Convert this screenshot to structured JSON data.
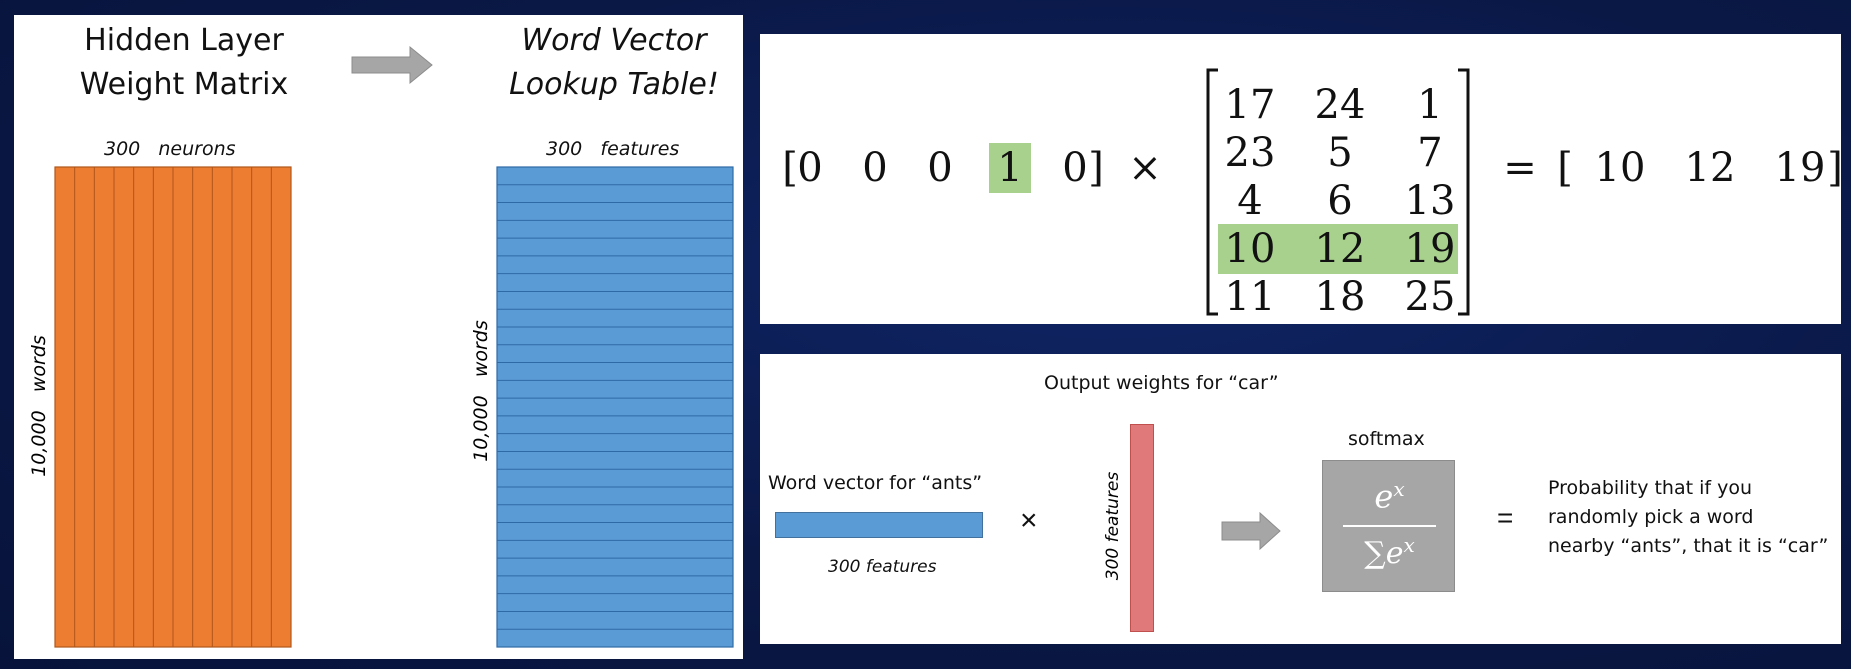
{
  "left_panel": {
    "title_left": [
      "Hidden Layer",
      "Weight Matrix"
    ],
    "title_right": [
      "Word Vector",
      "Lookup Table!"
    ],
    "orange_matrix": {
      "top_label": "300   neurons",
      "side_label": "10,000   words",
      "color": "#ed7d31"
    },
    "blue_matrix": {
      "top_label": "300   features",
      "side_label": "10,000   words",
      "color": "#5b9bd5"
    },
    "arrow_color": "#a6a6a6"
  },
  "top_panel": {
    "row_vector": [
      "0",
      "0",
      "0",
      "1",
      "0"
    ],
    "highlight_index": 3,
    "times": "×",
    "matrix": [
      [
        "17",
        "24",
        "1"
      ],
      [
        "23",
        "5",
        "7"
      ],
      [
        "4",
        "6",
        "13"
      ],
      [
        "10",
        "12",
        "19"
      ],
      [
        "11",
        "18",
        "25"
      ]
    ],
    "highlight_row": 3,
    "equals": "=",
    "result": [
      "10",
      "12",
      "19"
    ],
    "highlight_color": "#a9d18e"
  },
  "bottom_panel": {
    "word_vector_label": "Word vector for “ants”",
    "word_vector_features": "300 features",
    "times": "×",
    "output_label": "Output weights for “car”",
    "output_features": "300 features",
    "softmax_label": "softmax",
    "softmax_formula": {
      "numerator": "e",
      "numerator_sup": "x",
      "denominator_sum": "∑",
      "denominator": "e",
      "denominator_sup": "x"
    },
    "equals": "=",
    "probability_lines": [
      "Probability that if you",
      "randomly pick a word",
      "nearby “ants”, that it is “car”"
    ],
    "colors": {
      "word_vector": "#5b9bd5",
      "output_weights": "#e07a7a",
      "softmax_box": "#a6a6a6",
      "arrow": "#a6a6a6"
    }
  }
}
